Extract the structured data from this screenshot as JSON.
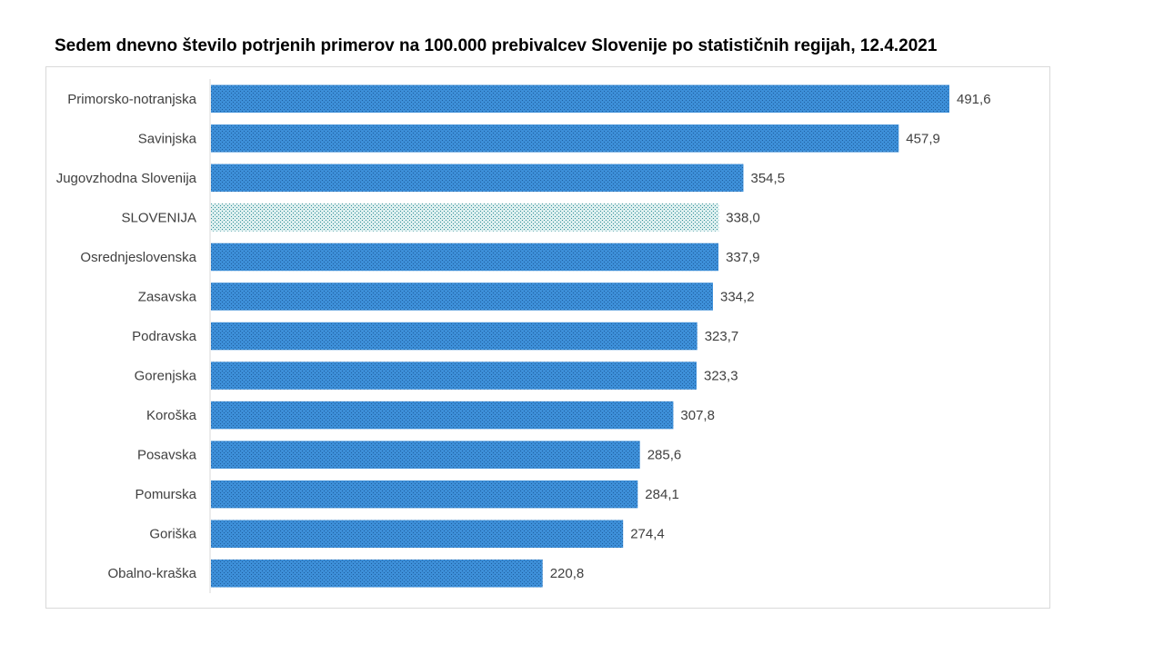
{
  "chart_data": {
    "type": "bar",
    "orientation": "horizontal",
    "title": "Sedem dnevno število potrjenih primerov na 100.000 prebivalcev Slovenije po statističnih regijah, 12.4.2021",
    "categories": [
      "Primorsko-notranjska",
      "Savinjska",
      "Jugovzhodna Slovenija",
      "SLOVENIJA",
      "Osrednjeslovenska",
      "Zasavska",
      "Podravska",
      "Gorenjska",
      "Koroška",
      "Posavska",
      "Pomurska",
      "Goriška",
      "Obalno-kraška"
    ],
    "values": [
      491.6,
      457.9,
      354.5,
      338.0,
      337.9,
      334.2,
      323.7,
      323.3,
      307.8,
      285.6,
      284.1,
      274.4,
      220.8
    ],
    "value_labels": [
      "491,6",
      "457,9",
      "354,5",
      "338,0",
      "337,9",
      "334,2",
      "323,7",
      "323,3",
      "307,8",
      "285,6",
      "284,1",
      "274,4",
      "220,8"
    ],
    "highlight_category": "SLOVENIJA",
    "xlim": [
      0,
      520
    ],
    "grid": false,
    "legend": "none",
    "colors": {
      "bar": "#3d8fd8",
      "bar_pattern": "#1f5fa0",
      "highlight_bar": "#dcefef",
      "highlight_pattern": "#2e8c95"
    }
  }
}
